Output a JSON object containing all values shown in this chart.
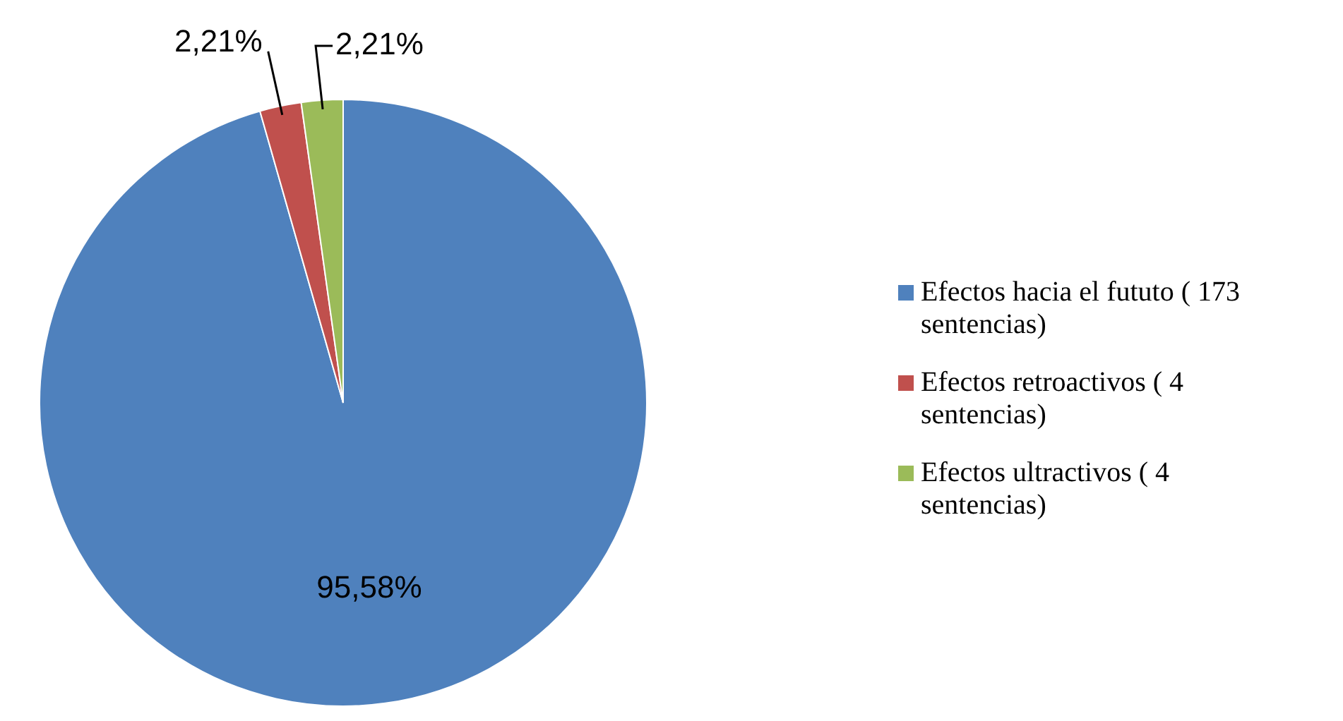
{
  "chart_data": {
    "type": "pie",
    "categories": [
      "Efectos hacia el fututo ( 173 sentencias)",
      "Efectos retroactivos ( 4 sentencias)",
      "Efectos ultractivos ( 4 sentencias)"
    ],
    "values": [
      95.58,
      2.21,
      2.21
    ],
    "colors": [
      "#4f81bd",
      "#c0504d",
      "#9bbb59"
    ],
    "value_labels": [
      "95,58%",
      "2,21%",
      "2,21%"
    ],
    "legend": "right"
  }
}
